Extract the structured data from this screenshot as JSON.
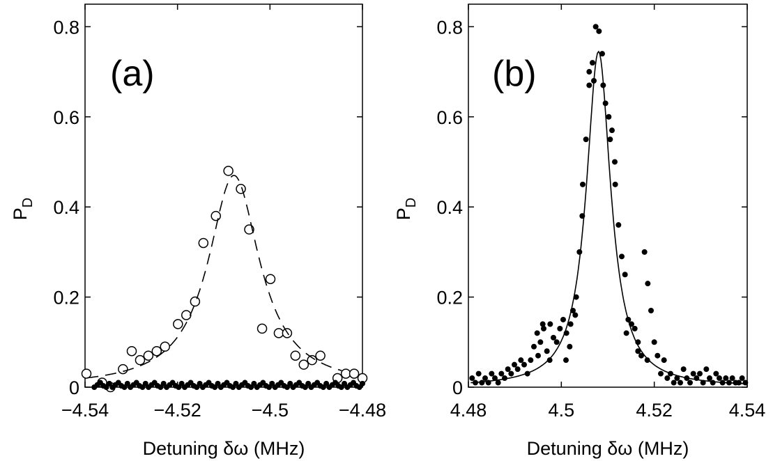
{
  "chart_data": [
    {
      "type": "scatter",
      "panel_label": "(a)",
      "xlabel": "Detuning δω (MHz)",
      "ylabel": "P",
      "ylabel_subscript": "D",
      "xlim": [
        -4.54,
        -4.48
      ],
      "ylim": [
        0,
        0.85
      ],
      "xticks": [
        -4.54,
        -4.52,
        -4.5,
        -4.48
      ],
      "xtick_labels": [
        "−4.54",
        "−4.52",
        "−4.5",
        "−4.48"
      ],
      "yticks": [
        0,
        0.2,
        0.4,
        0.6,
        0.8
      ],
      "ytick_labels": [
        "0",
        "0.2",
        "0.4",
        "0.6",
        "0.8"
      ],
      "grid": false,
      "series": [
        {
          "marker": "open-circle",
          "color": "#000000",
          "points": [
            [
              -4.5397,
              0.03
            ],
            [
              -4.5363,
              0.01
            ],
            [
              -4.5345,
              0.0
            ],
            [
              -4.5318,
              0.04
            ],
            [
              -4.5299,
              0.08
            ],
            [
              -4.5281,
              0.06
            ],
            [
              -4.5263,
              0.07
            ],
            [
              -4.5245,
              0.08
            ],
            [
              -4.5227,
              0.09
            ],
            [
              -4.5199,
              0.14
            ],
            [
              -4.5181,
              0.16
            ],
            [
              -4.5162,
              0.19
            ],
            [
              -4.5144,
              0.32
            ],
            [
              -4.5117,
              0.38
            ],
            [
              -4.509,
              0.48
            ],
            [
              -4.5063,
              0.44
            ],
            [
              -4.5045,
              0.35
            ],
            [
              -4.5017,
              0.13
            ],
            [
              -4.4999,
              0.24
            ],
            [
              -4.4981,
              0.12
            ],
            [
              -4.4963,
              0.12
            ],
            [
              -4.4945,
              0.07
            ],
            [
              -4.4927,
              0.05
            ],
            [
              -4.4909,
              0.06
            ],
            [
              -4.4891,
              0.07
            ],
            [
              -4.4854,
              0.02
            ],
            [
              -4.4836,
              0.03
            ],
            [
              -4.4818,
              0.03
            ],
            [
              -4.48,
              0.02
            ]
          ]
        },
        {
          "marker": "filled-dot",
          "color": "#000000",
          "note_values": "near-zero baseline points",
          "x_start": -4.538,
          "x_end": -4.48,
          "count": 90,
          "values_pattern": [
            0.0,
            0.005,
            0.01,
            0.003,
            0.0,
            0.008
          ]
        },
        {
          "line": "dashed-lorentzian",
          "color": "#000000",
          "center": -4.5078,
          "amplitude": 0.47,
          "half_width": 0.0068,
          "offset": 0.0,
          "x_range": [
            -4.5395,
            -4.4845
          ]
        }
      ]
    },
    {
      "type": "scatter",
      "panel_label": "(b)",
      "xlabel": "Detuning δω (MHz)",
      "ylabel": "P",
      "ylabel_subscript": "D",
      "xlim": [
        4.48,
        4.54
      ],
      "ylim": [
        0,
        0.85
      ],
      "xticks": [
        4.48,
        4.5,
        4.52,
        4.54
      ],
      "xtick_labels": [
        "4.48",
        "4.5",
        "4.52",
        "4.54"
      ],
      "yticks": [
        0,
        0.2,
        0.4,
        0.6,
        0.8
      ],
      "ytick_labels": [
        "0",
        "0.2",
        "0.4",
        "0.6",
        "0.8"
      ],
      "grid": false,
      "series": [
        {
          "marker": "filled-dot",
          "color": "#000000",
          "points": [
            [
              4.4808,
              0.02
            ],
            [
              4.4815,
              0.01
            ],
            [
              4.4822,
              0.03
            ],
            [
              4.4829,
              0.01
            ],
            [
              4.4836,
              0.02
            ],
            [
              4.4843,
              0.01
            ],
            [
              4.485,
              0.03
            ],
            [
              4.4857,
              0.02
            ],
            [
              4.4864,
              0.01
            ],
            [
              4.4871,
              0.03
            ],
            [
              4.4878,
              0.02
            ],
            [
              4.4885,
              0.04
            ],
            [
              4.4892,
              0.03
            ],
            [
              4.4899,
              0.05
            ],
            [
              4.4906,
              0.04
            ],
            [
              4.4913,
              0.06
            ],
            [
              4.492,
              0.05
            ],
            [
              4.4927,
              0.03
            ],
            [
              4.4934,
              0.06
            ],
            [
              4.4941,
              0.09
            ],
            [
              4.4948,
              0.12
            ],
            [
              4.4955,
              0.1
            ],
            [
              4.4962,
              0.13
            ],
            [
              4.4969,
              0.08
            ],
            [
              4.4976,
              0.14
            ],
            [
              4.4983,
              0.11
            ],
            [
              4.499,
              0.1
            ],
            [
              4.4997,
              0.13
            ],
            [
              4.5004,
              0.15
            ],
            [
              4.5011,
              0.12
            ],
            [
              4.5018,
              0.09
            ],
            [
              4.5025,
              0.17
            ],
            [
              4.5032,
              0.2
            ],
            [
              4.5039,
              0.3
            ],
            [
              4.5046,
              0.45
            ],
            [
              4.5053,
              0.55
            ],
            [
              4.506,
              0.67
            ],
            [
              4.5067,
              0.72
            ],
            [
              4.5074,
              0.8
            ],
            [
              4.5081,
              0.79
            ],
            [
              4.5088,
              0.74
            ],
            [
              4.5095,
              0.63
            ],
            [
              4.5102,
              0.6
            ],
            [
              4.5109,
              0.57
            ],
            [
              4.5116,
              0.45
            ],
            [
              4.5123,
              0.36
            ],
            [
              4.513,
              0.29
            ],
            [
              4.5137,
              0.25
            ],
            [
              4.5144,
              0.15
            ],
            [
              4.5151,
              0.14
            ],
            [
              4.5158,
              0.13
            ],
            [
              4.5165,
              0.08
            ],
            [
              4.5172,
              0.07
            ],
            [
              4.5179,
              0.3
            ],
            [
              4.5186,
              0.23
            ],
            [
              4.5193,
              0.17
            ],
            [
              4.52,
              0.1
            ],
            [
              4.5207,
              0.07
            ],
            [
              4.5214,
              0.03
            ],
            [
              4.5221,
              0.06
            ],
            [
              4.5228,
              0.02
            ],
            [
              4.5235,
              0.03
            ],
            [
              4.5242,
              0.01
            ],
            [
              4.5249,
              0.02
            ],
            [
              4.5256,
              0.01
            ],
            [
              4.5263,
              0.04
            ],
            [
              4.527,
              0.02
            ],
            [
              4.5277,
              0.01
            ],
            [
              4.5284,
              0.03
            ],
            [
              4.5291,
              0.02
            ],
            [
              4.5298,
              0.03
            ],
            [
              4.5305,
              0.01
            ],
            [
              4.5312,
              0.04
            ],
            [
              4.5319,
              0.02
            ],
            [
              4.5326,
              0.01
            ],
            [
              4.5333,
              0.03
            ],
            [
              4.534,
              0.02
            ],
            [
              4.5347,
              0.01
            ],
            [
              4.5354,
              0.02
            ],
            [
              4.5361,
              0.01
            ],
            [
              4.5368,
              0.02
            ],
            [
              4.5375,
              0.01
            ],
            [
              4.5382,
              0.01
            ],
            [
              4.5389,
              0.02
            ],
            [
              4.5396,
              0.01
            ],
            [
              4.501,
              0.06
            ],
            [
              4.502,
              0.14
            ],
            [
              4.503,
              0.16
            ],
            [
              4.5045,
              0.38
            ],
            [
              4.506,
              0.7
            ],
            [
              4.507,
              0.68
            ],
            [
              4.509,
              0.67
            ],
            [
              4.5105,
              0.55
            ],
            [
              4.5115,
              0.5
            ],
            [
              4.514,
              0.12
            ],
            [
              4.5165,
              0.1
            ],
            [
              4.5185,
              0.06
            ],
            [
              4.495,
              0.07
            ],
            [
              4.496,
              0.14
            ],
            [
              4.4975,
              0.06
            ]
          ]
        },
        {
          "line": "solid-lorentzian",
          "color": "#000000",
          "center": 4.508,
          "amplitude": 0.745,
          "half_width": 0.0032,
          "offset": 0.0,
          "x_range": [
            4.4805,
            4.5395
          ]
        }
      ]
    }
  ]
}
